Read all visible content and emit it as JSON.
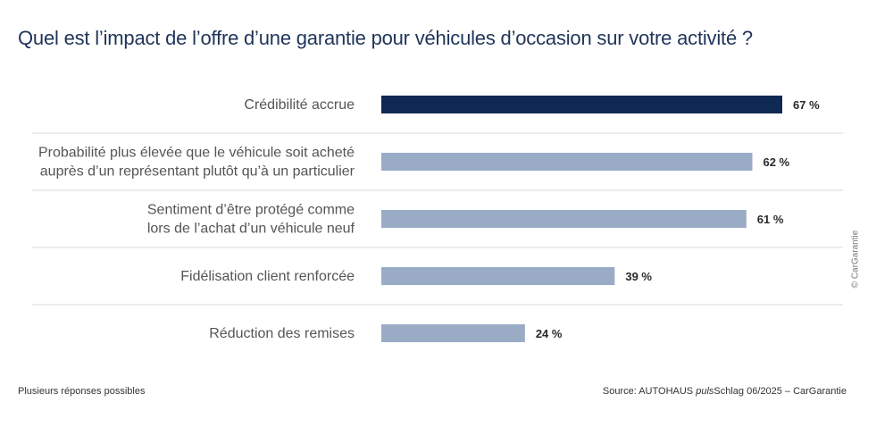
{
  "chart_data": {
    "type": "bar",
    "orientation": "horizontal",
    "title": "Quel est l’impact de l’offre d’une garantie pour véhicules d’occasion sur votre activité ?",
    "categories": [
      [
        "Crédibilité accrue"
      ],
      [
        "Probabilité plus élevée que le véhicule soit acheté",
        "auprès d’un représentant plutôt qu’à un particulier"
      ],
      [
        "Sentiment d’être protégé comme",
        "lors de l’achat d’un véhicule neuf"
      ],
      [
        "Fidélisation client renforcée"
      ],
      [
        "Réduction des remises"
      ]
    ],
    "values": [
      67,
      62,
      61,
      39,
      24
    ],
    "value_labels": [
      "67 %",
      "62 %",
      "61 %",
      "39 %",
      "24 %"
    ],
    "xlim": [
      0,
      100
    ],
    "colors": {
      "highlight": "#0f2a52",
      "default": "#9aabc6",
      "divider": "#d9d9d9"
    }
  },
  "footnote": "Plusieurs réponses possibles",
  "source": {
    "prefix": "Source: AUTOHAUS ",
    "italic": "puls",
    "suffix": "Schlag 06/2025 – CarGarantie"
  },
  "copyright": "© CarGarantie"
}
